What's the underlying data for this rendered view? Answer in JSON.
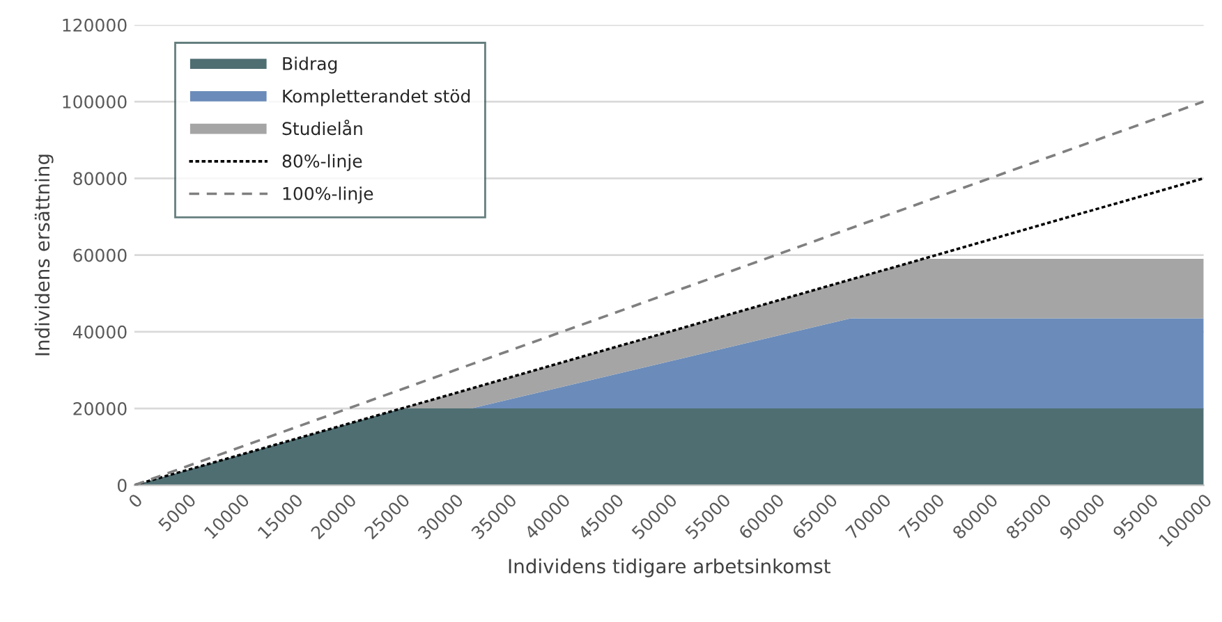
{
  "chart_data": {
    "type": "area",
    "xlabel": "Individens tidigare arbetsinkomst",
    "ylabel": "Individens ersättning",
    "x": [
      0,
      25000,
      31500,
      67000,
      73750,
      100000
    ],
    "stacked": true,
    "series": [
      {
        "name": "Bidrag",
        "color": "#4e6e72",
        "values": [
          0,
          20000,
          20000,
          20000,
          20000,
          20000
        ]
      },
      {
        "name": "Kompletterandet stöd",
        "color": "#6b8cba",
        "values": [
          0,
          0,
          0,
          23500,
          23500,
          23500
        ]
      },
      {
        "name": "Studielån",
        "color": "#a5a5a5",
        "values": [
          0,
          0,
          5200,
          10100,
          15500,
          15500
        ]
      },
      {
        "name": "80%-linje",
        "type": "line",
        "color": "#000000",
        "line_style": "dotted",
        "values": [
          0,
          20000,
          25200,
          53600,
          59000,
          80000
        ]
      },
      {
        "name": "100%-linje",
        "type": "line",
        "color": "#7f7f7f",
        "line_style": "dashed",
        "values": [
          0,
          25000,
          31500,
          67000,
          73750,
          100000
        ]
      }
    ],
    "xlim": [
      0,
      100000
    ],
    "xticks": [
      0,
      5000,
      10000,
      15000,
      20000,
      25000,
      30000,
      35000,
      40000,
      45000,
      50000,
      55000,
      60000,
      65000,
      70000,
      75000,
      80000,
      85000,
      90000,
      95000,
      100000
    ],
    "ylim": [
      0,
      120000
    ],
    "yticks": [
      0,
      20000,
      40000,
      60000,
      80000,
      100000,
      120000
    ],
    "grid": "y",
    "legend": "top left"
  }
}
